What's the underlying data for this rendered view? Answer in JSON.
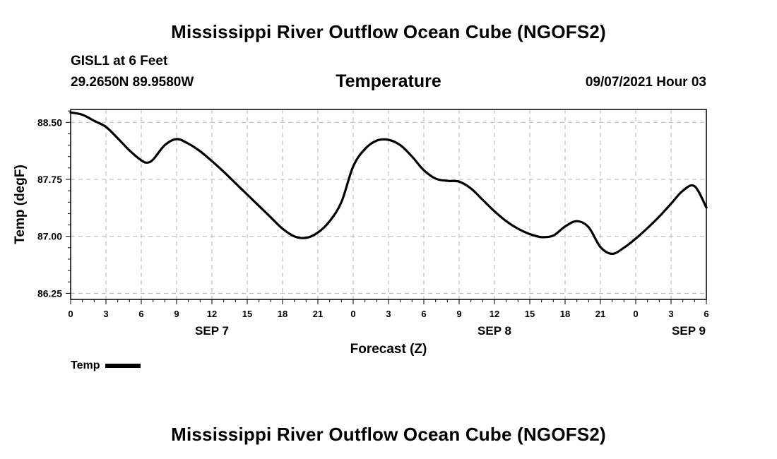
{
  "page": {
    "title_top": "Mississippi River Outflow Ocean Cube (NGOFS2)",
    "title_bottom": "Mississippi River Outflow Ocean Cube (NGOFS2)",
    "station_label": "GISL1 at 6 Feet",
    "coordinates": "29.2650N  89.9580W",
    "datetime": "09/07/2021 Hour 03"
  },
  "chart_data": {
    "type": "line",
    "title": "Temperature",
    "xlabel": "Forecast (Z)",
    "ylabel": "Temp (degF)",
    "ylim": [
      86.17,
      88.67
    ],
    "xlim": [
      0,
      54
    ],
    "grid": true,
    "yticks": [
      "86.25",
      "87.00",
      "87.75",
      "88.50"
    ],
    "ytick_values": [
      86.25,
      87.0,
      87.75,
      88.5
    ],
    "xticks": [
      "0",
      "3",
      "6",
      "9",
      "12",
      "15",
      "18",
      "21",
      "0",
      "3",
      "6",
      "9",
      "12",
      "15",
      "18",
      "21",
      "0",
      "3",
      "6"
    ],
    "xtick_hours": [
      0,
      3,
      6,
      9,
      12,
      15,
      18,
      21,
      24,
      27,
      30,
      33,
      36,
      39,
      42,
      45,
      48,
      51,
      54
    ],
    "day_labels": [
      {
        "label": "SEP 7",
        "hour": 12
      },
      {
        "label": "SEP 8",
        "hour": 36
      },
      {
        "label": "SEP 9",
        "hour": 52.5
      }
    ],
    "legend": {
      "position": "bottom-left",
      "entries": [
        "Temp"
      ]
    },
    "series": [
      {
        "name": "Temp",
        "color": "#000000",
        "x": [
          0,
          1,
          2,
          3,
          4,
          5,
          6,
          6.5,
          7,
          8,
          9,
          10,
          11,
          12,
          13,
          14,
          15,
          16,
          17,
          18,
          19,
          20,
          21,
          22,
          23,
          24,
          25,
          26,
          27,
          28,
          29,
          30,
          31,
          32,
          33,
          34,
          35,
          36,
          37,
          38,
          39,
          40,
          41,
          42,
          43,
          44,
          45,
          46,
          47,
          48,
          49,
          50,
          51,
          52,
          53,
          54
        ],
        "y": [
          88.63,
          88.6,
          88.52,
          88.44,
          88.29,
          88.13,
          88.0,
          87.97,
          88.01,
          88.2,
          88.28,
          88.22,
          88.12,
          87.99,
          87.85,
          87.7,
          87.55,
          87.4,
          87.25,
          87.1,
          87.0,
          86.98,
          87.05,
          87.2,
          87.45,
          87.92,
          88.15,
          88.26,
          88.27,
          88.2,
          88.05,
          87.87,
          87.76,
          87.73,
          87.72,
          87.63,
          87.48,
          87.33,
          87.2,
          87.1,
          87.03,
          86.99,
          87.01,
          87.13,
          87.2,
          87.12,
          86.86,
          86.77,
          86.85,
          86.97,
          87.11,
          87.26,
          87.43,
          87.6,
          87.66,
          87.38
        ]
      }
    ]
  }
}
